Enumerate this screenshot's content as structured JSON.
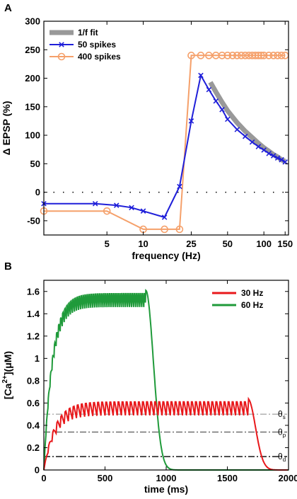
{
  "chart_data": [
    {
      "panel_label": "A",
      "type": "line",
      "xscale": "log",
      "xlabel": "frequency (Hz)",
      "ylabel": "Δ EPSP (%)",
      "xlim": [
        1.5,
        160
      ],
      "ylim": [
        -75,
        300
      ],
      "xticks": [
        5,
        10,
        25,
        50,
        100,
        150
      ],
      "yticks": [
        -50,
        0,
        50,
        100,
        150,
        200,
        250,
        300
      ],
      "zero_line": "dotted",
      "legend_position": "top-left",
      "series": [
        {
          "name": "1/f fit",
          "color": "#999999",
          "style": "thick-line",
          "x": [
            36,
            40,
            45,
            50,
            60,
            70,
            80,
            90,
            100,
            110,
            120,
            130,
            140,
            150
          ],
          "y": [
            193,
            176,
            158,
            143,
            122,
            107,
            96,
            86,
            78,
            72,
            66,
            62,
            57,
            54
          ]
        },
        {
          "name": "50 spikes",
          "color": "#1f1fd9",
          "marker": "x",
          "x": [
            1.5,
            4,
            6,
            8,
            10,
            15,
            20,
            25,
            30,
            35,
            40,
            45,
            50,
            60,
            70,
            80,
            90,
            100,
            110,
            120,
            130,
            140,
            150
          ],
          "y": [
            -20,
            -20,
            -23,
            -27,
            -33,
            -44,
            10,
            125,
            205,
            180,
            160,
            145,
            128,
            110,
            98,
            88,
            80,
            74,
            68,
            64,
            60,
            57,
            53
          ]
        },
        {
          "name": "400 spikes",
          "color": "#f5a06a",
          "marker": "o",
          "x": [
            1.5,
            5,
            10,
            15,
            20,
            25,
            30,
            35,
            40,
            45,
            50,
            55,
            60,
            65,
            70,
            75,
            80,
            85,
            90,
            95,
            100,
            110,
            120,
            130,
            140,
            150
          ],
          "y": [
            -33,
            -33,
            -65,
            -65,
            -65,
            240,
            240,
            240,
            240,
            240,
            240,
            240,
            240,
            240,
            240,
            240,
            240,
            240,
            240,
            240,
            240,
            240,
            240,
            240,
            240,
            240
          ]
        }
      ]
    },
    {
      "panel_label": "B",
      "type": "line",
      "xlabel": "time (ms)",
      "ylabel": "[Ca2+](μM)",
      "ylabel_parts": {
        "pre": "[Ca",
        "sup": "2+",
        "post": "](μM)"
      },
      "xlim": [
        0,
        2000
      ],
      "ylim": [
        0,
        1.7
      ],
      "xticks": [
        0,
        500,
        1000,
        1500,
        2000
      ],
      "yticks": [
        0,
        0.2,
        0.4,
        0.6,
        0.8,
        1.0,
        1.2,
        1.4,
        1.6
      ],
      "ytick_labels": [
        "0",
        "0.2",
        "0.4",
        "0.6",
        "0.8",
        "1",
        "1.2",
        "1.4",
        "1.6"
      ],
      "legend_position": "top-right",
      "thresholds": [
        {
          "label": "θs",
          "sym": "θ",
          "sub": "s",
          "value": 0.5,
          "color": "#aaaaaa"
        },
        {
          "label": "θp",
          "sym": "θ",
          "sub": "p",
          "value": 0.34,
          "color": "#666666"
        },
        {
          "label": "θd",
          "sym": "θ",
          "sub": "d",
          "value": 0.12,
          "color": "#000000"
        }
      ],
      "series": [
        {
          "name": "30 Hz",
          "color": "#e8181b",
          "frequency_hz": 30,
          "stim_end_ms": 1667,
          "osc_min": 0.49,
          "osc_max": 0.64,
          "rise_tau_ms": 90,
          "decay_tau_ms": 40
        },
        {
          "name": "60 Hz",
          "color": "#1f9a3a",
          "frequency_hz": 60,
          "stim_end_ms": 833,
          "osc_min": 1.46,
          "osc_max": 1.61,
          "rise_tau_ms": 70,
          "decay_tau_ms": 40
        }
      ]
    }
  ]
}
